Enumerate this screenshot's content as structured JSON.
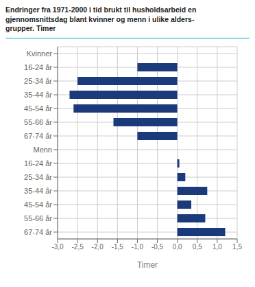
{
  "chart_data": {
    "type": "bar",
    "orientation": "horizontal",
    "title": "Endringer fra 1971-2000 i tid brukt til husholdsarbeid en\ngjennomsnittsdag blant kvinner og menn i ulike alders-\ngrupper. Timer",
    "categories": [
      "Kvinner",
      "16-24 år",
      "25-34 år",
      "35-44 år",
      "45-54 år",
      "55-66 år",
      "67-74 år",
      "Menn",
      "16-24 år",
      "25-34 år",
      "35-44 år",
      "45-54 år",
      "55-66 år",
      "67-74 år"
    ],
    "values": [
      null,
      -1.0,
      -2.5,
      -2.7,
      -2.6,
      -1.6,
      -1.0,
      null,
      0.05,
      0.2,
      0.75,
      0.35,
      0.7,
      1.2
    ],
    "color": "#1a3a7c",
    "xlabel": "Timer",
    "xlim": [
      -3.0,
      1.5
    ],
    "xticks": [
      {
        "value": -3.0,
        "label": "-3,0"
      },
      {
        "value": -2.5,
        "label": "-2,5"
      },
      {
        "value": -2.0,
        "label": "-2,0"
      },
      {
        "value": -1.5,
        "label": "-1,5"
      },
      {
        "value": -1.0,
        "label": "-1,0"
      },
      {
        "value": -0.5,
        "label": "-0,5"
      },
      {
        "value": 0.0,
        "label": "0,0"
      },
      {
        "value": 0.5,
        "label": "0,5"
      },
      {
        "value": 1.0,
        "label": "1,0"
      },
      {
        "value": 1.5,
        "label": "1,5"
      }
    ],
    "grid": true
  }
}
